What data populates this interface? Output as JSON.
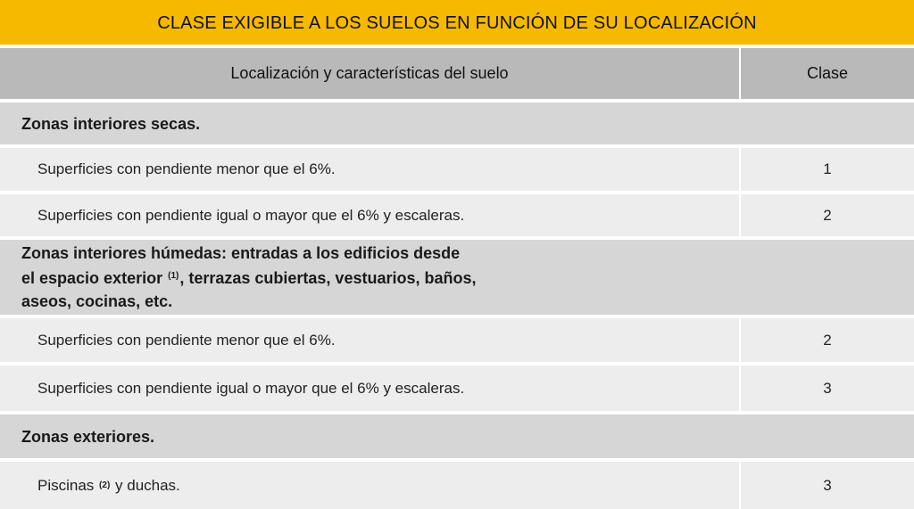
{
  "title": "CLASE EXIGIBLE A LOS SUELOS EN FUNCIÓN DE SU LOCALIZACIÓN",
  "header": {
    "location_col": "Localización y características del suelo",
    "class_col": "Clase"
  },
  "sections": [
    {
      "heading": "Zonas interiores secas.",
      "rows": [
        {
          "label": "Superficies con pendiente menor que el 6%.",
          "clase": "1"
        },
        {
          "label": "Superficies con pendiente igual o mayor que el 6% y escaleras.",
          "clase": "2"
        }
      ]
    },
    {
      "heading_line1": "Zonas interiores húmedas: entradas a los edificios desde",
      "heading_line2_a": "el espacio exterior",
      "heading_line2_sup": "(1)",
      "heading_line2_b": ", terrazas cubiertas, vestuarios, baños,",
      "heading_line3": "aseos, cocinas, etc.",
      "rows": [
        {
          "label": "Superficies con pendiente menor que el 6%.",
          "clase": "2"
        },
        {
          "label": "Superficies con pendiente igual o mayor que el 6% y escaleras.",
          "clase": "3"
        }
      ]
    },
    {
      "heading": "Zonas exteriores.",
      "rows": [
        {
          "label_a": "Piscinas",
          "label_sup": "(2)",
          "label_b": "y duchas.",
          "clase": "3"
        }
      ]
    }
  ]
}
